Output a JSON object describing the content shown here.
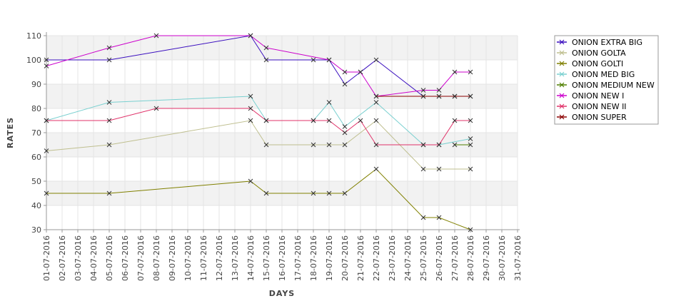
{
  "chart_data": {
    "type": "line",
    "xlabel": "DAYS",
    "ylabel": "RATES",
    "ylim": [
      30,
      110
    ],
    "yticks": [
      30,
      40,
      50,
      60,
      70,
      80,
      90,
      100,
      110
    ],
    "grid": "on",
    "legend_position": "right",
    "categories": [
      "01-07-2016",
      "02-07-2016",
      "03-07-2016",
      "04-07-2016",
      "05-07-2016",
      "06-07-2016",
      "07-07-2016",
      "08-07-2016",
      "09-07-2016",
      "10-07-2016",
      "11-07-2016",
      "12-07-2016",
      "13-07-2016",
      "14-07-2016",
      "15-07-2016",
      "16-07-2016",
      "17-07-2016",
      "18-07-2016",
      "19-07-2016",
      "20-07-2016",
      "21-07-2016",
      "22-07-2016",
      "23-07-2016",
      "24-07-2016",
      "25-07-2016",
      "26-07-2016",
      "27-07-2016",
      "28-07-2016",
      "29-07-2016",
      "30-07-2016",
      "31-07-2016"
    ],
    "series": [
      {
        "name": "ONION EXTRA BIG",
        "color": "#3b0fbf",
        "points": [
          [
            "01-07-2016",
            100
          ],
          [
            "05-07-2016",
            100
          ],
          [
            "14-07-2016",
            110
          ],
          [
            "15-07-2016",
            100
          ],
          [
            "18-07-2016",
            100
          ],
          [
            "19-07-2016",
            100
          ],
          [
            "20-07-2016",
            90
          ],
          [
            "21-07-2016",
            95
          ],
          [
            "22-07-2016",
            100
          ],
          [
            "25-07-2016",
            85
          ],
          [
            "26-07-2016",
            85
          ],
          [
            "27-07-2016",
            85
          ],
          [
            "28-07-2016",
            85
          ]
        ]
      },
      {
        "name": "ONION GOLTA",
        "color": "#bfbf8f",
        "points": [
          [
            "01-07-2016",
            62.5
          ],
          [
            "05-07-2016",
            65
          ],
          [
            "14-07-2016",
            75
          ],
          [
            "15-07-2016",
            65
          ],
          [
            "18-07-2016",
            65
          ],
          [
            "19-07-2016",
            65
          ],
          [
            "20-07-2016",
            65
          ],
          [
            "22-07-2016",
            75
          ],
          [
            "25-07-2016",
            55
          ],
          [
            "26-07-2016",
            55
          ],
          [
            "28-07-2016",
            55
          ]
        ]
      },
      {
        "name": "ONION GOLTI",
        "color": "#808000",
        "points": [
          [
            "01-07-2016",
            45
          ],
          [
            "05-07-2016",
            45
          ],
          [
            "14-07-2016",
            50
          ],
          [
            "15-07-2016",
            45
          ],
          [
            "18-07-2016",
            45
          ],
          [
            "19-07-2016",
            45
          ],
          [
            "20-07-2016",
            45
          ],
          [
            "22-07-2016",
            55
          ],
          [
            "25-07-2016",
            35
          ],
          [
            "26-07-2016",
            35
          ],
          [
            "28-07-2016",
            30
          ]
        ]
      },
      {
        "name": "ONION MED BIG",
        "color": "#7ad0d0",
        "points": [
          [
            "01-07-2016",
            75
          ],
          [
            "05-07-2016",
            82.5
          ],
          [
            "14-07-2016",
            85
          ],
          [
            "15-07-2016",
            75
          ],
          [
            "18-07-2016",
            75
          ],
          [
            "19-07-2016",
            82.5
          ],
          [
            "20-07-2016",
            72.5
          ],
          [
            "22-07-2016",
            82.5
          ],
          [
            "25-07-2016",
            65
          ],
          [
            "26-07-2016",
            65
          ],
          [
            "28-07-2016",
            67.5
          ]
        ]
      },
      {
        "name": "ONION MEDIUM NEW",
        "color": "#4f7f00",
        "points": [
          [
            "27-07-2016",
            65
          ],
          [
            "28-07-2016",
            65
          ]
        ]
      },
      {
        "name": "ONION NEW I",
        "color": "#cc00cc",
        "points": [
          [
            "01-07-2016",
            97.5
          ],
          [
            "05-07-2016",
            105
          ],
          [
            "08-07-2016",
            110
          ],
          [
            "14-07-2016",
            110
          ],
          [
            "15-07-2016",
            105
          ],
          [
            "19-07-2016",
            100
          ],
          [
            "20-07-2016",
            95
          ],
          [
            "21-07-2016",
            95
          ],
          [
            "22-07-2016",
            85
          ],
          [
            "25-07-2016",
            87.5
          ],
          [
            "26-07-2016",
            87.5
          ],
          [
            "27-07-2016",
            95
          ],
          [
            "28-07-2016",
            95
          ]
        ]
      },
      {
        "name": "ONION NEW II",
        "color": "#e0336a",
        "points": [
          [
            "01-07-2016",
            75
          ],
          [
            "05-07-2016",
            75
          ],
          [
            "08-07-2016",
            80
          ],
          [
            "14-07-2016",
            80
          ],
          [
            "15-07-2016",
            75
          ],
          [
            "18-07-2016",
            75
          ],
          [
            "19-07-2016",
            75
          ],
          [
            "20-07-2016",
            70
          ],
          [
            "21-07-2016",
            75
          ],
          [
            "22-07-2016",
            65
          ],
          [
            "25-07-2016",
            65
          ],
          [
            "26-07-2016",
            65
          ],
          [
            "27-07-2016",
            75
          ],
          [
            "28-07-2016",
            75
          ]
        ]
      },
      {
        "name": "ONION SUPER",
        "color": "#8b0000",
        "points": [
          [
            "22-07-2016",
            85
          ],
          [
            "25-07-2016",
            85
          ],
          [
            "26-07-2016",
            85
          ],
          [
            "27-07-2016",
            85
          ],
          [
            "28-07-2016",
            85
          ]
        ]
      }
    ]
  }
}
